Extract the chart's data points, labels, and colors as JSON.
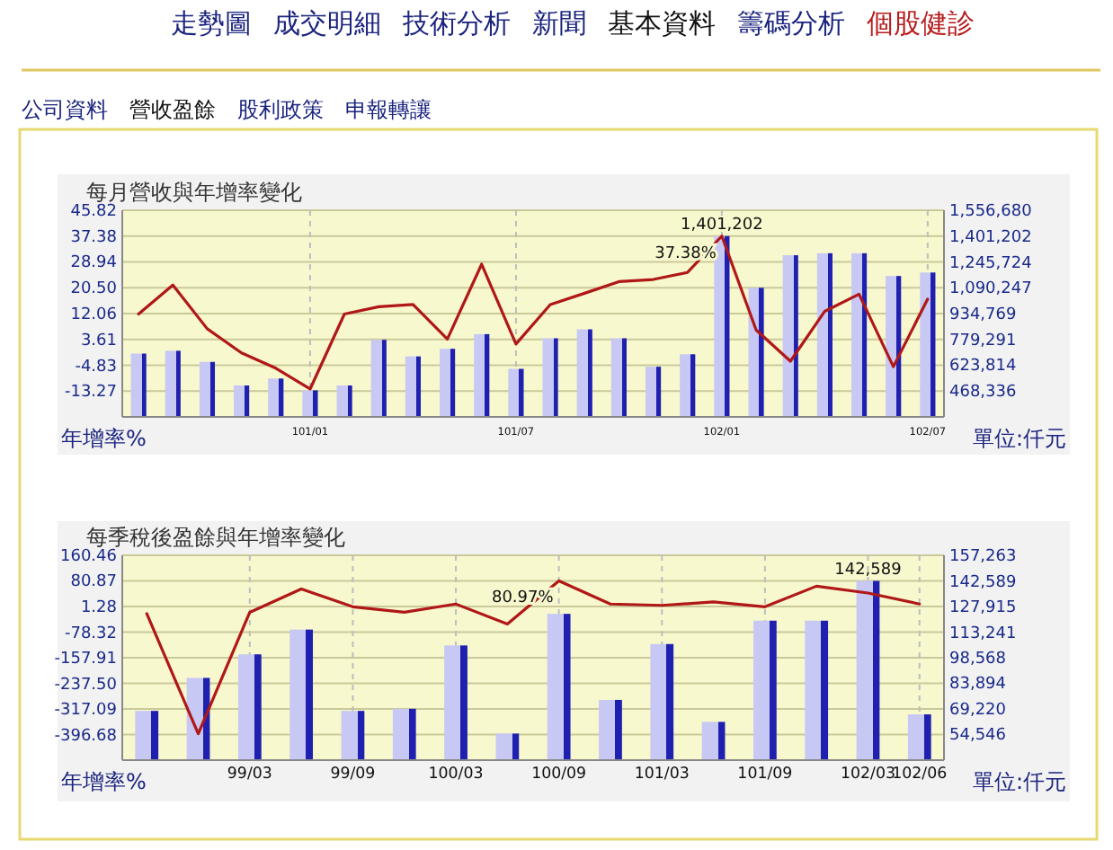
{
  "chart_data": [
    {
      "type": "bar",
      "title": "每月營收與年增率變化",
      "ylabel": "年增率%",
      "y2label": "單位:仟元",
      "annotations": [
        "走勢圖",
        "成交明細",
        "技術分析",
        "新聞",
        "基本資料",
        "籌碼分析",
        "個股健診",
        "公司資料",
        "營收盈餘",
        "股利政策",
        "申報轉讓"
      ],
      "categories": [
        null,
        null,
        null,
        null,
        null,
        "101/01",
        null,
        null,
        null,
        null,
        null,
        "101/07",
        null,
        null,
        null,
        null,
        null,
        "102/01",
        null,
        null,
        null,
        null,
        null,
        "102/07"
      ],
      "series": [
        {
          "axis": "y2",
          "color": "#c8c8f4",
          "values": [
            694000,
            711000,
            644000,
            502000,
            544000,
            473000,
            502000,
            777000,
            677000,
            723000,
            811000,
            602000,
            786000,
            840000,
            786000,
            615000,
            690000,
            1401202,
            1090000,
            1286000,
            1298000,
            1298000,
            1161000,
            1182000
          ],
          "value_labels": [
            null,
            null,
            null,
            null,
            null,
            null,
            null,
            null,
            null,
            null,
            null,
            null,
            null,
            null,
            null,
            null,
            null,
            "1,401,202",
            null,
            null,
            null,
            null,
            null,
            null
          ]
        },
        {
          "type": "line",
          "color": "#b01818",
          "values": [
            11.9,
            21.4,
            7.1,
            -0.8,
            -5.8,
            -12.6,
            11.9,
            14.3,
            15.0,
            3.7,
            28.2,
            2.1,
            15.0,
            18.7,
            22.5,
            23.2,
            25.5,
            37.38,
            6.7,
            -3.5,
            12.8,
            18.4,
            -5.3,
            16.8
          ],
          "value_labels": [
            null,
            null,
            null,
            null,
            null,
            null,
            null,
            null,
            null,
            null,
            null,
            null,
            null,
            null,
            null,
            null,
            null,
            "37.38%",
            null,
            null,
            null,
            null,
            null,
            null
          ]
        }
      ],
      "ylim": [
        -21.71,
        45.82
      ],
      "yticks": [
        -13.27,
        -4.83,
        3.61,
        12.06,
        {
          "value": 20.5,
          "label": "20.50"
        },
        28.94,
        37.38,
        45.82
      ],
      "y2lim": [
        312858,
        1556680
      ],
      "y2ticks": [
        {
          "value": 468336,
          "label": "468,336"
        },
        {
          "value": 623814,
          "label": "623,814"
        },
        {
          "value": 779291,
          "label": "779,291"
        },
        {
          "value": 934769,
          "label": "934,769"
        },
        {
          "value": 1090247,
          "label": "1,090,247"
        },
        {
          "value": 1245724,
          "label": "1,245,724"
        },
        {
          "value": 1401202,
          "label": "1,401,202"
        },
        {
          "value": 1556680,
          "label": "1,556,680"
        }
      ],
      "grid": true
    },
    {
      "type": "bar",
      "title": "每季稅後盈餘與年增率變化",
      "ylabel": "年增率%",
      "y2label": "單位:仟元",
      "categories": [
        null,
        null,
        "99/03",
        null,
        "99/09",
        null,
        "100/03",
        null,
        "100/09",
        null,
        "101/03",
        null,
        "101/09",
        null,
        "102/03",
        "102/06"
      ],
      "series": [
        {
          "axis": "y2",
          "color": "#c8c8f4",
          "values": [
            68100,
            87000,
            100500,
            114700,
            68100,
            69300,
            105600,
            55100,
            123700,
            74400,
            106400,
            61800,
            119800,
            119800,
            142589,
            66100
          ],
          "value_labels": [
            null,
            null,
            null,
            null,
            null,
            null,
            null,
            null,
            null,
            null,
            null,
            null,
            null,
            null,
            "142,589",
            null
          ]
        },
        {
          "type": "line",
          "color": "#b01818",
          "values": [
            -20.9,
            -394.4,
            -16.7,
            55.9,
            0.4,
            -16.7,
            9.0,
            -53.0,
            80.97,
            9.0,
            4.7,
            15.4,
            0.4,
            64.5,
            43.1,
            9.0
          ],
          "value_labels": [
            null,
            null,
            null,
            null,
            null,
            null,
            null,
            null,
            "80.97%",
            null,
            null,
            null,
            null,
            null,
            null,
            null
          ]
        }
      ],
      "ylim": [
        -476.27,
        160.46
      ],
      "yticks": [
        -396.68,
        -317.09,
        {
          "value": -237.5,
          "label": "-237.50"
        },
        -157.91,
        -78.32,
        1.28,
        80.87,
        160.46
      ],
      "y2lim": [
        39872,
        157263
      ],
      "y2ticks": [
        {
          "value": 54546,
          "label": "54,546"
        },
        {
          "value": 69220,
          "label": "69,220"
        },
        {
          "value": 83894,
          "label": "83,894"
        },
        {
          "value": 98568,
          "label": "98,568"
        },
        {
          "value": 113241,
          "label": "113,241"
        },
        {
          "value": 127915,
          "label": "127,915"
        },
        {
          "value": 142589,
          "label": "142,589"
        },
        {
          "value": 157263,
          "label": "157,263"
        }
      ],
      "grid": true
    }
  ]
}
